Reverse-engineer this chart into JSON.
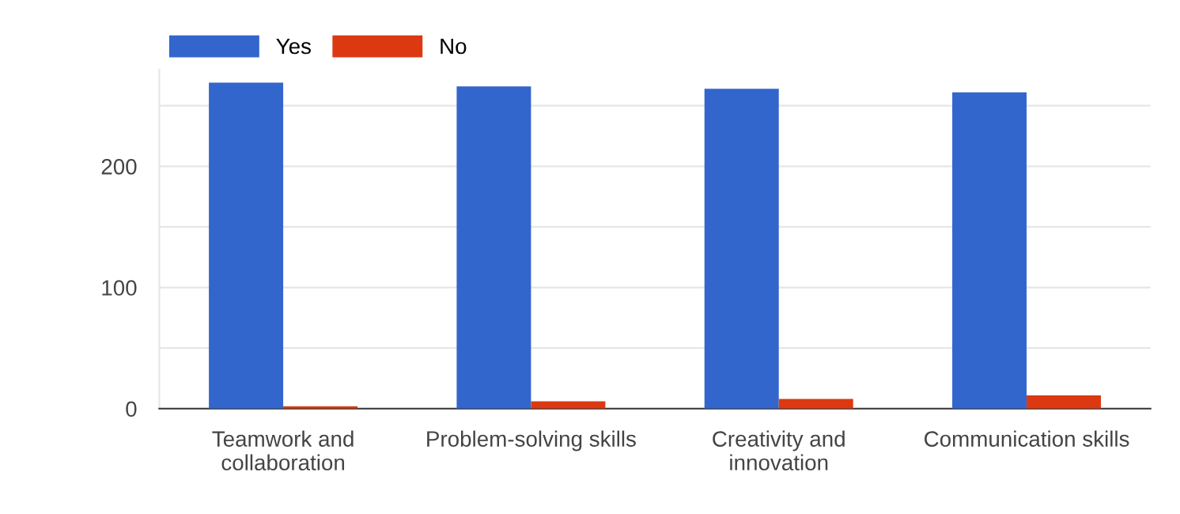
{
  "chart_data": {
    "type": "bar",
    "categories": [
      "Teamwork and\ncollaboration",
      "Problem-solving skills",
      "Creativity and\ninnovation",
      "Communication skills"
    ],
    "series": [
      {
        "name": "Yes",
        "color": "#3366cc",
        "values": [
          269,
          266,
          264,
          261
        ]
      },
      {
        "name": "No",
        "color": "#dc3912",
        "values": [
          2,
          6,
          8,
          11
        ]
      }
    ],
    "ylim": [
      0,
      280
    ],
    "yticks": [
      0,
      {
        "value": 50,
        "label": null
      },
      100,
      {
        "value": 150,
        "label": null
      },
      200,
      {
        "value": 250,
        "label": null
      }
    ],
    "grid": "y",
    "legend": "top left"
  }
}
